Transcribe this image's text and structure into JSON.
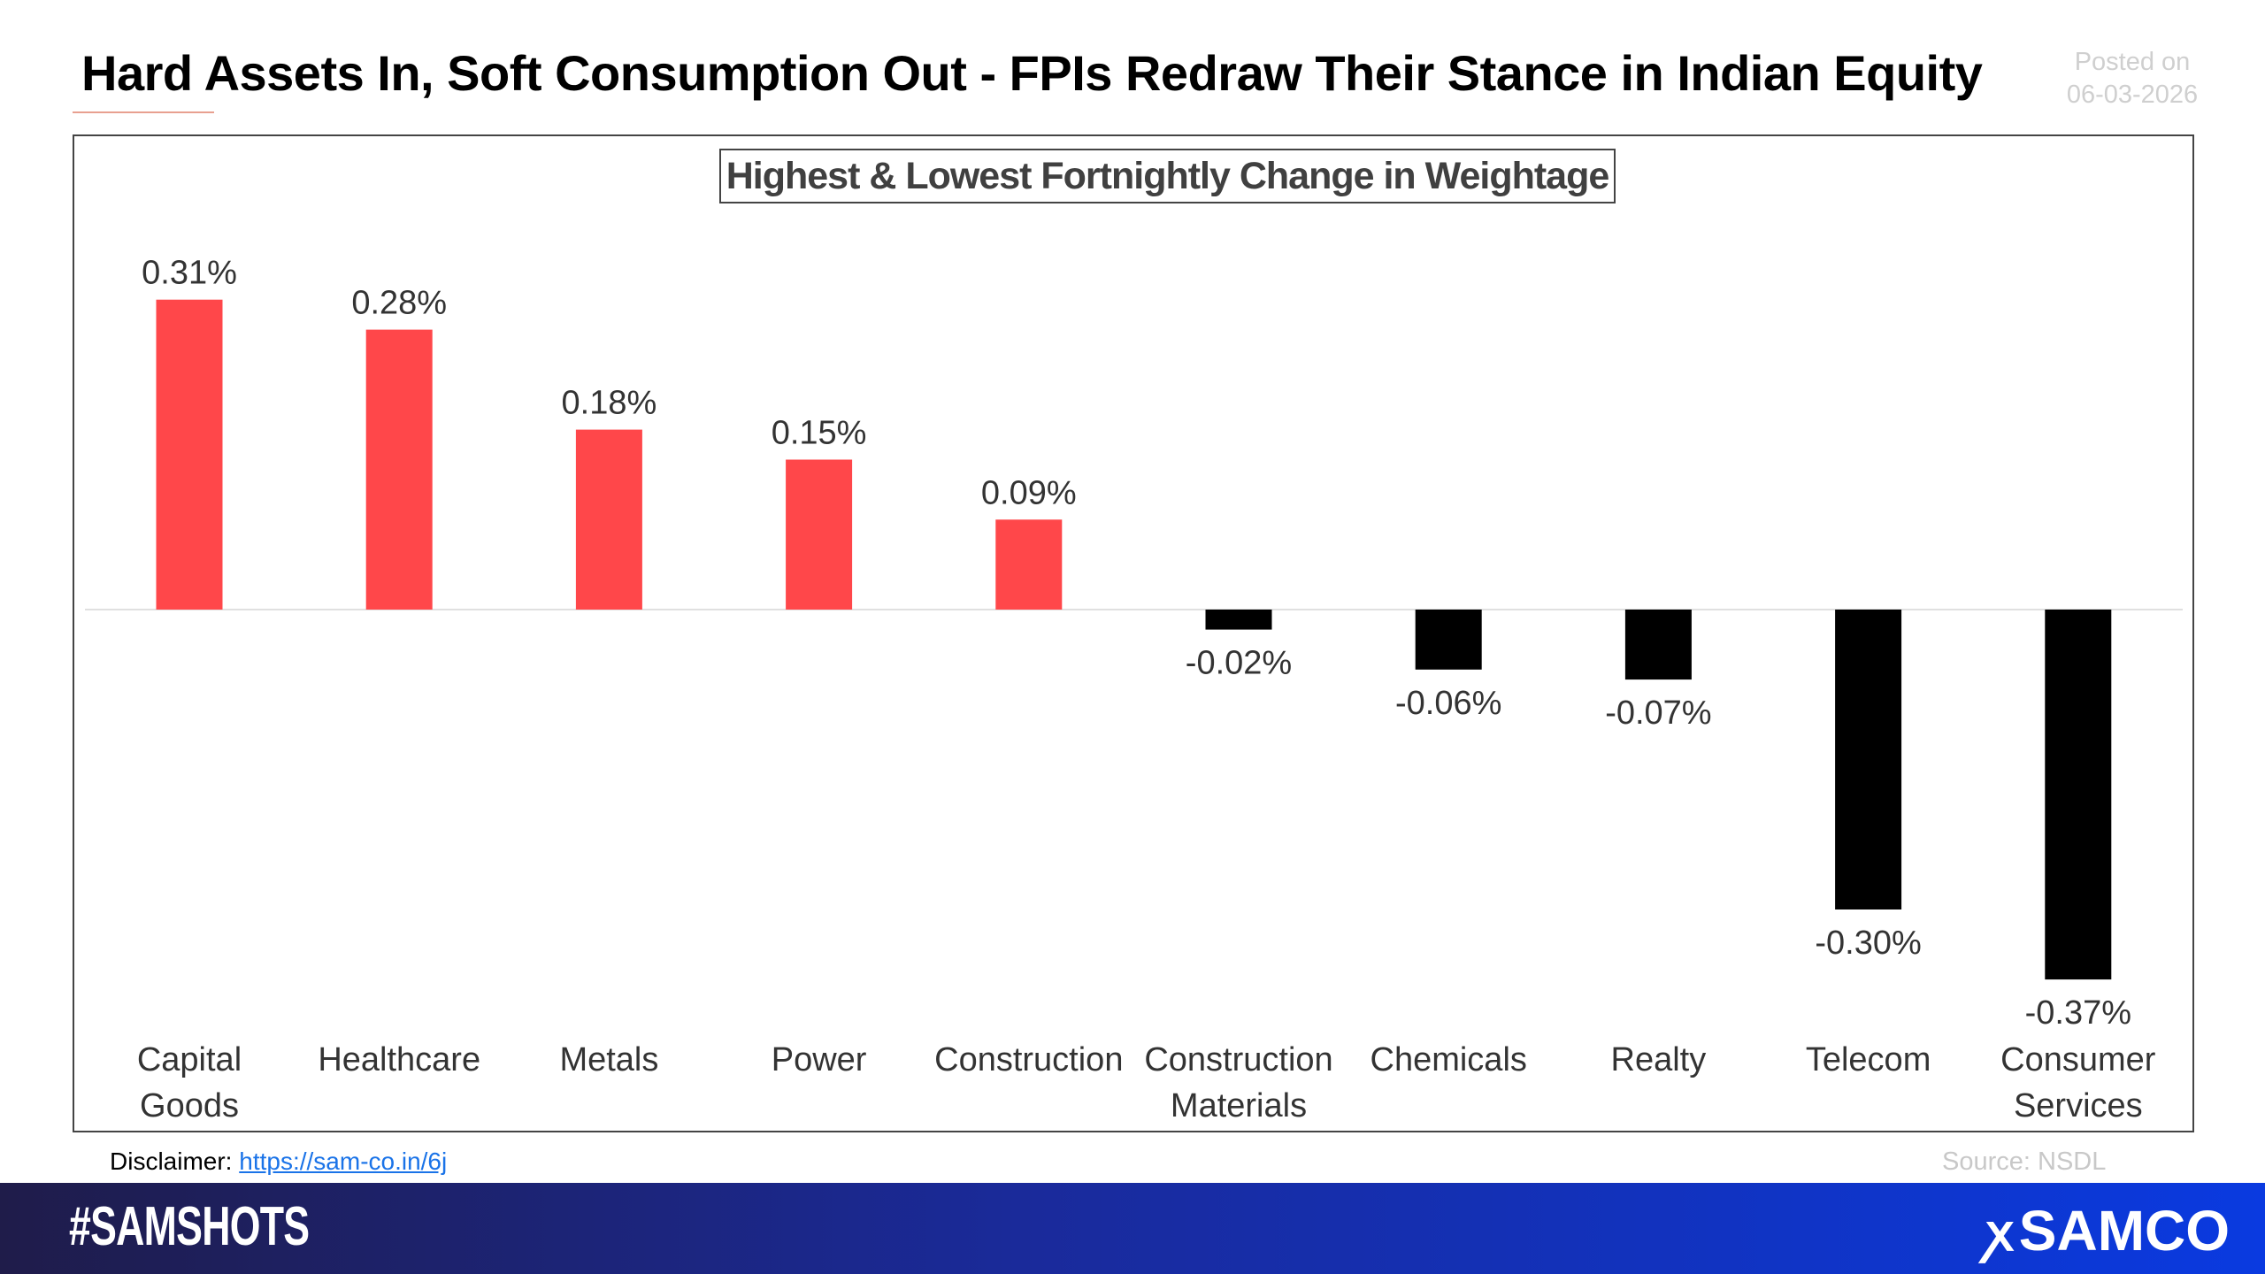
{
  "header": {
    "title": "Hard Assets In, Soft Consumption Out - FPIs Redraw Their Stance in Indian Equity",
    "posted_label": "Posted on",
    "posted_date": "06-03-2026"
  },
  "chart_data": {
    "type": "bar",
    "title": "Highest & Lowest Fortnightly Change in Weightage",
    "categories": [
      "Capital Goods",
      "Healthcare",
      "Metals",
      "Power",
      "Construction",
      "Construction Materials",
      "Chemicals",
      "Realty",
      "Telecom",
      "Consumer Services"
    ],
    "category_lines": [
      [
        "Capital",
        "Goods"
      ],
      [
        "Healthcare"
      ],
      [
        "Metals"
      ],
      [
        "Power"
      ],
      [
        "Construction"
      ],
      [
        "Construction",
        "Materials"
      ],
      [
        "Chemicals"
      ],
      [
        "Realty"
      ],
      [
        "Telecom"
      ],
      [
        "Consumer",
        "Services"
      ]
    ],
    "values": [
      0.31,
      0.28,
      0.18,
      0.15,
      0.09,
      -0.02,
      -0.06,
      -0.07,
      -0.3,
      -0.37
    ],
    "labels": [
      "0.31%",
      "0.28%",
      "0.18%",
      "0.15%",
      "0.09%",
      "-0.02%",
      "-0.06%",
      "-0.07%",
      "-0.30%",
      "-0.37%"
    ],
    "unit": "%",
    "grid": false,
    "legend": "none",
    "colors": {
      "positive": "#ff474a",
      "negative": "#000000"
    }
  },
  "footer": {
    "disclaimer_label": "Disclaimer:",
    "disclaimer_link": "https://sam-co.in/6j",
    "source": "Source: NSDL",
    "hashtag": "#SAMSHOTS",
    "brand": "SAMCO",
    "brand_icon": "samco-logo-icon"
  }
}
